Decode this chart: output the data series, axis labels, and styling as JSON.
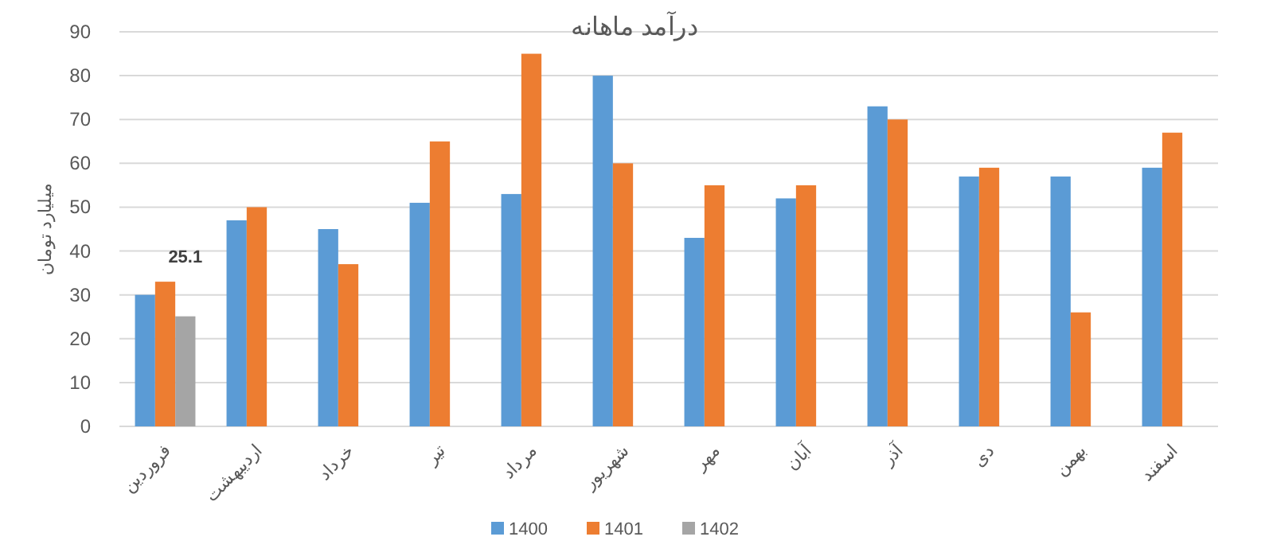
{
  "chart_data": {
    "type": "bar",
    "title": "درآمد ماهانه",
    "ylabel": "میلیارد تومان",
    "categories": [
      "فروردین",
      "اردیبهشت",
      "خرداد",
      "تیر",
      "مرداد",
      "شهریور",
      "مهر",
      "آبان",
      "آذر",
      "دی",
      "بهمن",
      "اسفند"
    ],
    "series": [
      {
        "name": "1400",
        "color": "#5b9bd5",
        "values": [
          30,
          47,
          45,
          51,
          53,
          80,
          43,
          52,
          73,
          57,
          57,
          59
        ]
      },
      {
        "name": "1401",
        "color": "#ed7d31",
        "values": [
          33,
          50,
          37,
          65,
          85,
          60,
          55,
          55,
          70,
          59,
          26,
          67
        ]
      },
      {
        "name": "1402",
        "color": "#a5a5a5",
        "values": [
          25.1,
          null,
          null,
          null,
          null,
          null,
          null,
          null,
          null,
          null,
          null,
          null
        ],
        "value_labels": [
          "25.1",
          null,
          null,
          null,
          null,
          null,
          null,
          null,
          null,
          null,
          null,
          null
        ]
      }
    ],
    "ylim": [
      0,
      90
    ],
    "yticks": [
      0,
      10,
      20,
      30,
      40,
      50,
      60,
      70,
      80,
      90
    ],
    "grid": "y",
    "legend": "bottom"
  }
}
